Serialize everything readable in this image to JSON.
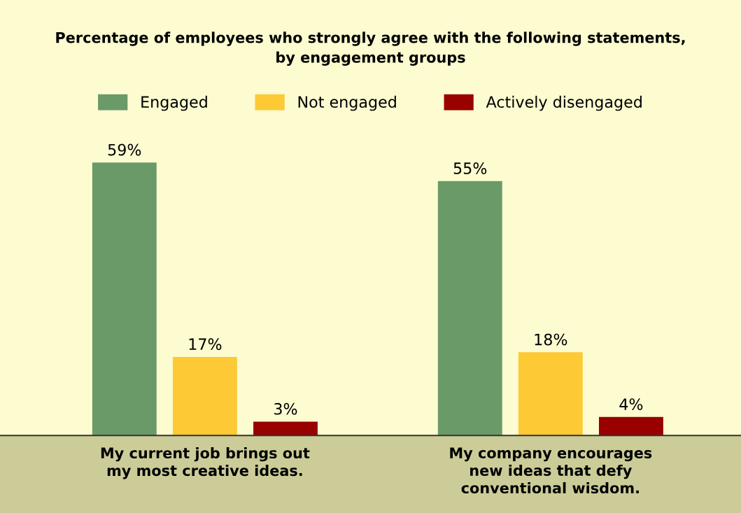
{
  "chart_data": {
    "type": "bar",
    "title": "Percentage of employees who strongly agree with the following statements,\nby engagement groups",
    "categories": [
      "My current job brings out\nmy most creative ideas.",
      "My company encourages\nnew ideas that defy\nconventional wisdom."
    ],
    "series": [
      {
        "name": "Engaged",
        "color": "#6a9a68",
        "values": [
          59,
          55
        ],
        "value_labels": [
          "59%",
          "55%"
        ]
      },
      {
        "name": "Not engaged",
        "color": "#fdc935",
        "values": [
          17,
          18
        ],
        "value_labels": [
          "17%",
          "18%"
        ]
      },
      {
        "name": "Actively disengaged",
        "color": "#990000",
        "values": [
          3,
          4
        ],
        "value_labels": [
          "3%",
          "4%"
        ]
      }
    ],
    "legend": "top",
    "grid": false
  }
}
